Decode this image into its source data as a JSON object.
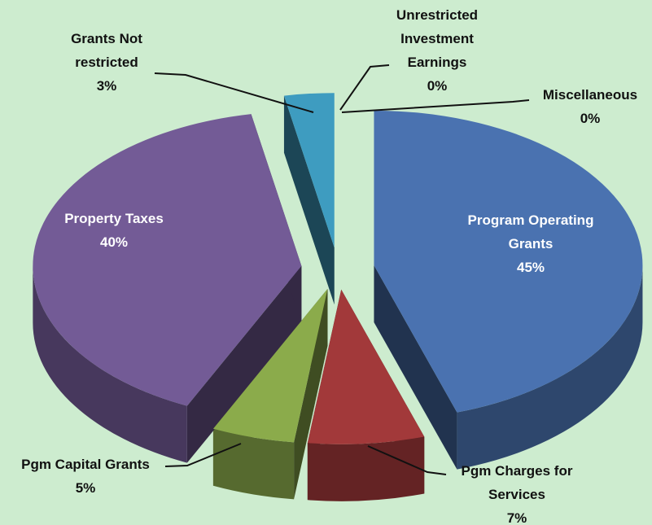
{
  "chart_data": {
    "type": "pie",
    "three_d": true,
    "exploded": true,
    "categories": [
      "Program Operating Grants",
      "Pgm Charges for Services",
      "Pgm Capital Grants",
      "Property Taxes",
      "Grants Not restricted",
      "Unrestricted Investment Earnings",
      "Miscellaneous"
    ],
    "values": [
      45,
      7,
      5,
      40,
      3,
      0,
      0
    ],
    "value_labels": [
      "45%",
      "7%",
      "5%",
      "40%",
      "3%",
      "0%",
      "0%"
    ],
    "colors": [
      "#4a72b0",
      "#a2393a",
      "#8bab4b",
      "#735b96",
      "#3e9cc0",
      "#e08a3c",
      "#8aa6d6"
    ]
  }
}
